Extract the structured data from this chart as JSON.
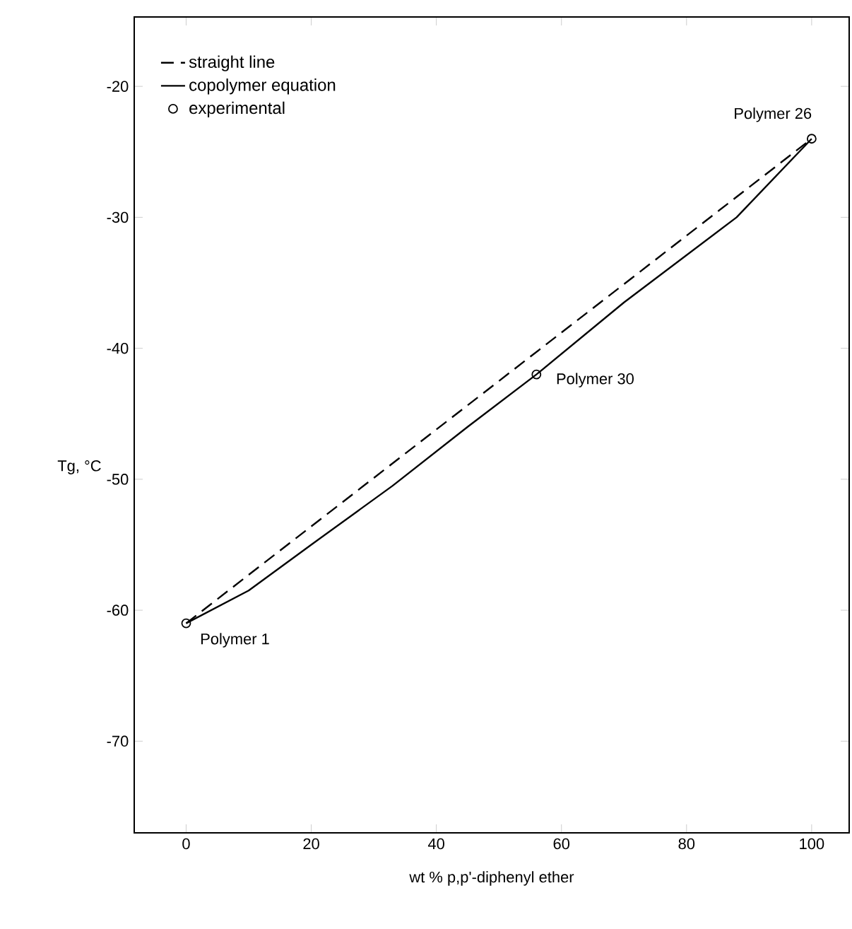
{
  "chart_data": {
    "type": "line",
    "xlabel": "wt % p,p'-diphenyl ether",
    "ylabel": "Tg, °C",
    "series": [
      {
        "name": "straight line",
        "color": "#000000",
        "line_style": "dashed",
        "marker": "none",
        "x": [
          0,
          100
        ],
        "values": [
          -61,
          -24
        ]
      },
      {
        "name": "copolymer equation",
        "color": "#000000",
        "line_style": "solid",
        "marker": "none",
        "x": [
          0,
          10,
          20,
          33,
          45,
          56,
          70,
          88,
          100
        ],
        "values": [
          -61,
          -58.5,
          -55,
          -50.5,
          -46,
          -42,
          -36.5,
          -30,
          -24
        ]
      },
      {
        "name": "experimental",
        "type": "scatter",
        "color": "#000000",
        "marker": "circle",
        "x": [
          0,
          56,
          100
        ],
        "values": [
          -61,
          -42,
          -24
        ]
      }
    ],
    "annotations": [
      {
        "text": "Polymer 1",
        "x": 0,
        "y": -61
      },
      {
        "text": "Polymer 30",
        "x": 56,
        "y": -42
      },
      {
        "text": "Polymer 26",
        "x": 100,
        "y": -24
      }
    ],
    "xlim": [
      -8.3,
      106
    ],
    "ylim": [
      -77,
      -14.7
    ],
    "xticks": [
      0,
      20,
      40,
      60,
      80,
      100
    ],
    "yticks": [
      -20,
      -30,
      -40,
      -50,
      -60,
      -70
    ],
    "legend": "top left",
    "grid": false
  }
}
